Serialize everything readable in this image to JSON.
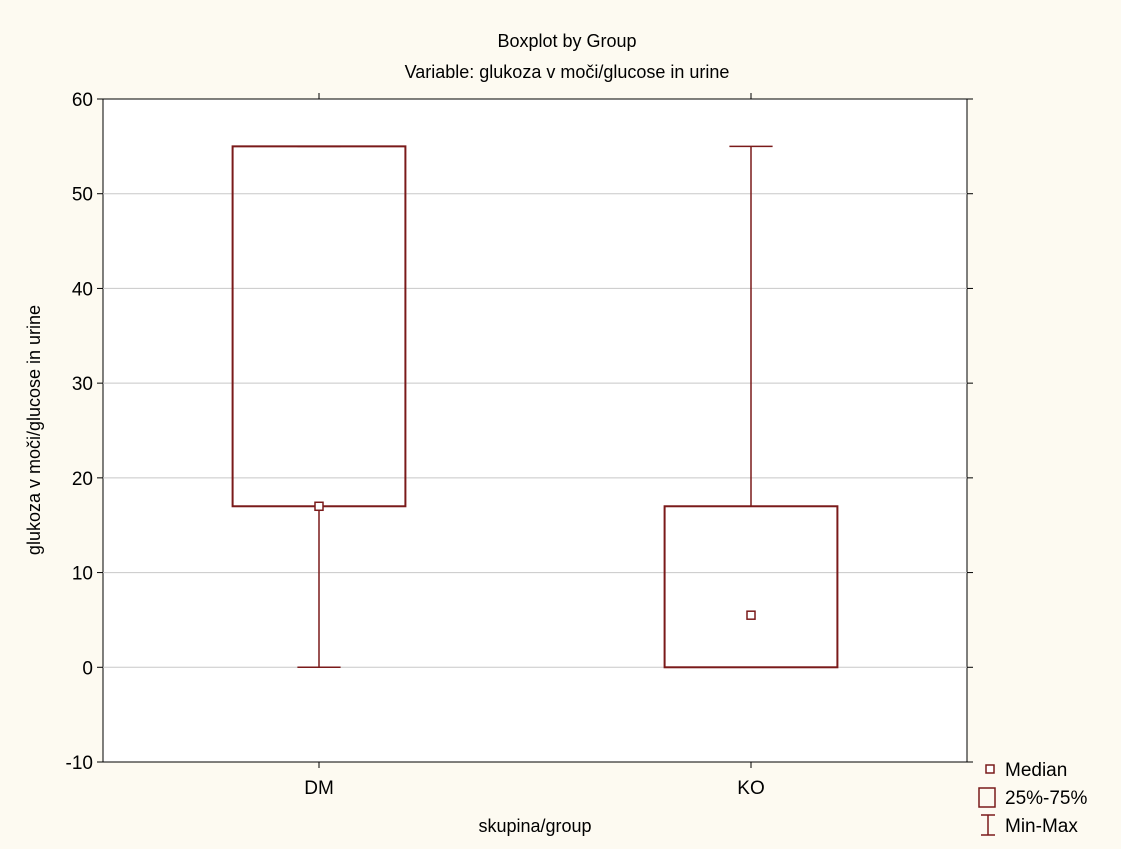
{
  "chart_data": {
    "type": "boxplot",
    "title": "Boxplot by Group",
    "subtitle": "Variable: glukoza v moči/glucose in urine",
    "xlabel": "skupina/group",
    "ylabel": "glukoza v moči/glucose in urine",
    "ylim": [
      -10,
      60
    ],
    "yticks": [
      -10,
      0,
      10,
      20,
      30,
      40,
      50,
      60
    ],
    "grid": true,
    "categories": [
      "DM",
      "KO"
    ],
    "series": [
      {
        "category": "DM",
        "min": 0,
        "q1": 17,
        "median": 17,
        "q3": 55,
        "max": 55
      },
      {
        "category": "KO",
        "min": 0,
        "q1": 0,
        "median": 5.5,
        "q3": 17,
        "max": 55
      }
    ],
    "legend": {
      "position": "bottom-right",
      "entries": [
        "Median",
        "25%-75%",
        "Min-Max"
      ]
    },
    "colors": {
      "box": "#7a1a1a",
      "grid": "#c8c8c8",
      "background": "#fdfaf1",
      "plot_background": "#ffffff"
    }
  }
}
